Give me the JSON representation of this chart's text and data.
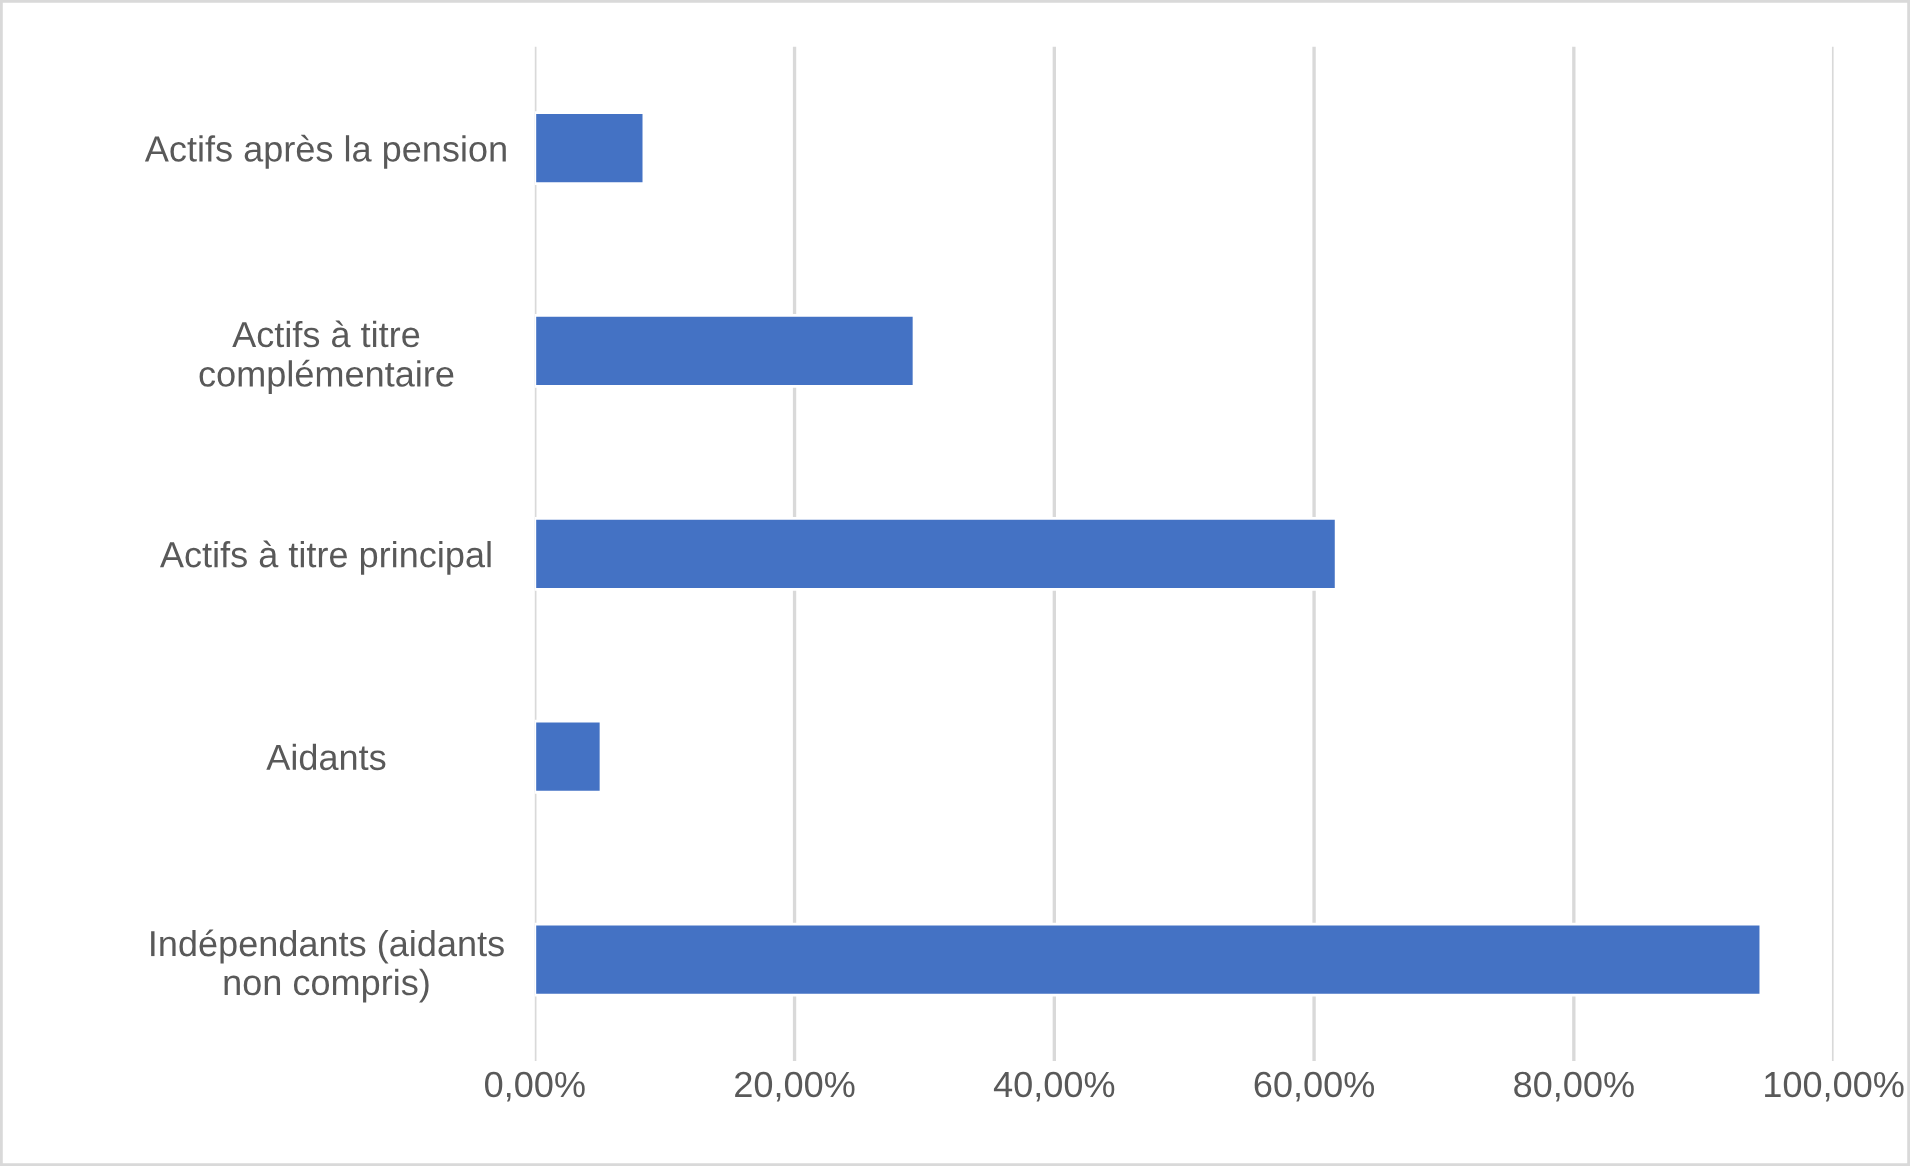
{
  "chart_data": {
    "type": "bar",
    "orientation": "horizontal",
    "categories": [
      "Actifs après la pension",
      "Actifs à titre\ncomplémentaire",
      "Actifs à titre principal",
      "Aidants",
      "Indépendants (aidants\nnon compris)"
    ],
    "values": [
      8.4,
      29.2,
      61.7,
      5.1,
      94.4
    ],
    "color": "#4472c4",
    "xlim": [
      0,
      100
    ],
    "xticks": [
      {
        "value": 0,
        "label": "0,00%"
      },
      {
        "value": 20,
        "label": "20,00%"
      },
      {
        "value": 40,
        "label": "40,00%"
      },
      {
        "value": 60,
        "label": "60,00%"
      },
      {
        "value": 80,
        "label": "80,00%"
      },
      {
        "value": 100,
        "label": "100,00%"
      }
    ],
    "grid": "x",
    "legend": false
  }
}
